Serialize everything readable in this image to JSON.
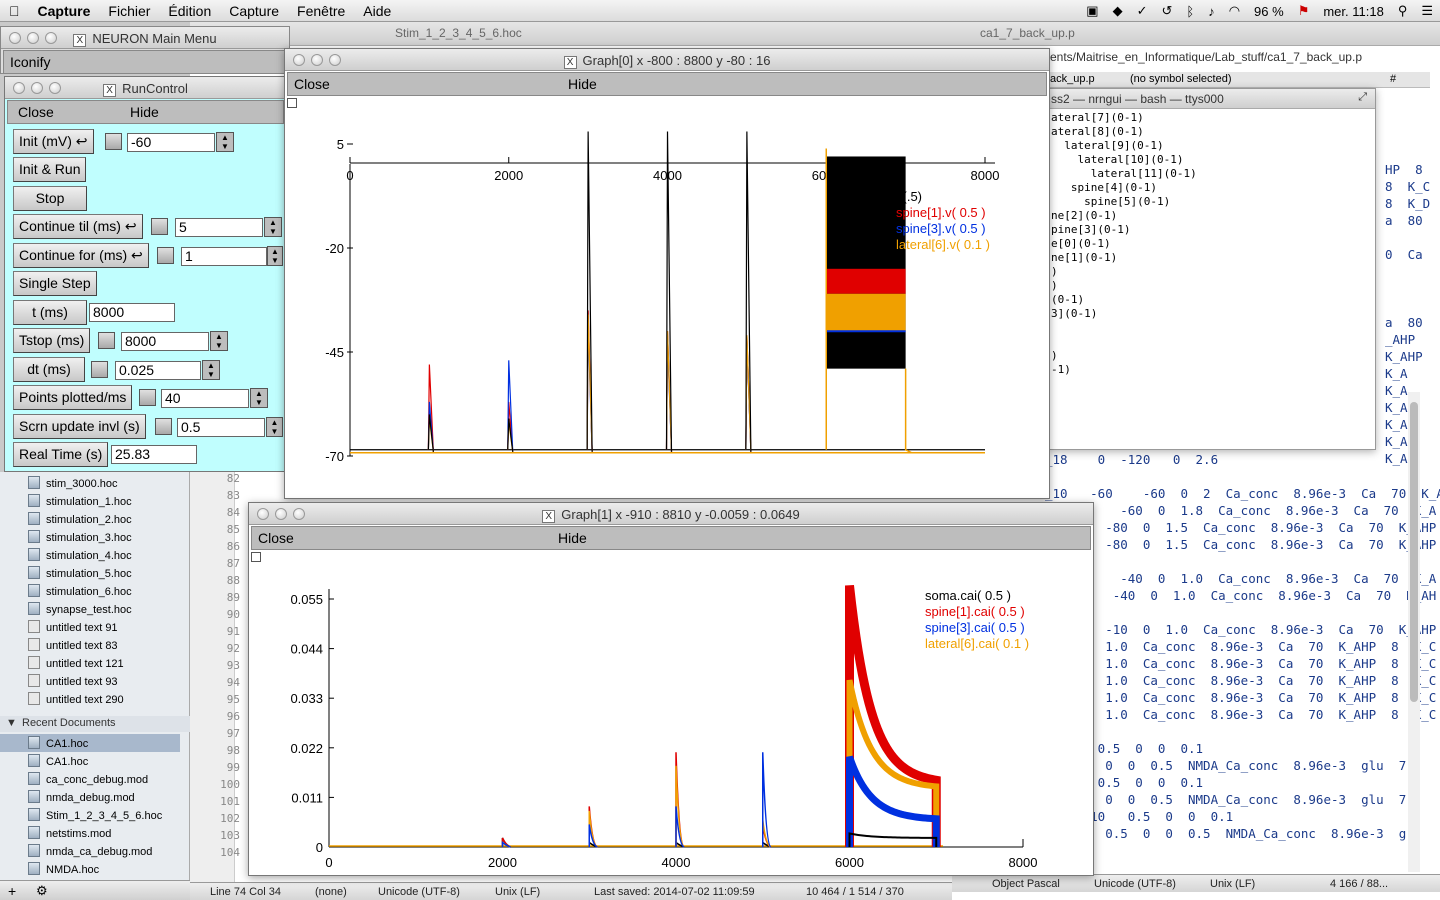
{
  "menubar": {
    "app": "Capture",
    "items": [
      "Fichier",
      "Édition",
      "Capture",
      "Fenêtre",
      "Aide"
    ],
    "battery": "96 %",
    "clock": "mer. 11:18"
  },
  "neuron_main": {
    "title": "NEURON Main Menu",
    "iconify": "Iconify"
  },
  "run_control": {
    "title": "RunControl",
    "close": "Close",
    "hide": "Hide",
    "init_label": "Init (mV)",
    "init_value": "-60",
    "init_run": "Init & Run",
    "stop": "Stop",
    "continue_til": "Continue til (ms)",
    "continue_til_value": "5",
    "continue_for": "Continue for (ms)",
    "continue_for_value": "1",
    "single_step": "Single Step",
    "t_label": "t (ms)",
    "t_value": "8000",
    "tstop_label": "Tstop (ms)",
    "tstop_value": "8000",
    "dt_label": "dt (ms)",
    "dt_value": "0.025",
    "points_label": "Points plotted/ms",
    "points_value": "40",
    "scrn_label": "Scrn update invl (s)",
    "scrn_value": "0.5",
    "realtime_label": "Real Time (s)",
    "realtime_value": "25.83"
  },
  "editor_tabs": {
    "tab1": "Stim_1_2_3_4_5_6.hoc",
    "tab2": "ca1_7_back_up.p",
    "path": "ents/Maitrise_en_Informatique/Lab_stuff/ca1_7_back_up.p",
    "symbol_file": "ack_up.p",
    "symbol": "(no symbol selected)",
    "hash": "#"
  },
  "terminal": {
    "title": "ss2 — nrngui — bash — ttys000",
    "lines": [
      "ateral[7](0-1)",
      "ateral[8](0-1)",
      "  lateral[9](0-1)",
      "    lateral[10](0-1)",
      "      lateral[11](0-1)",
      "   spine[4](0-1)",
      "     spine[5](0-1)",
      "ne[2](0-1)",
      "pine[3](0-1)",
      "e[0](0-1)",
      "ne[1](0-1)",
      ")",
      ")",
      "(0-1)",
      "3](0-1)",
      "",
      "",
      ")",
      "-1)"
    ]
  },
  "right_code": {
    "lines": [
      "HP  8",
      "8  K_C",
      "8  K_D",
      "a  80",
      "",
      "0  Ca",
      "",
      "",
      "",
      "a  80",
      "_AHP",
      "K_AHP",
      "K_A",
      "K_A",
      "K_A",
      "K_A",
      "K_A",
      "K_A"
    ]
  },
  "code_lines": [
    {
      "n": "82",
      "t": "_18    0  -120   0  2.6"
    },
    {
      "n": "83",
      "t": ""
    },
    {
      "n": "84",
      "t": "_10   -60    -60  0  2  Ca_conc  8.96e-3  Ca  70  K_AHP"
    },
    {
      "n": "85",
      "t": "   -60    -60  0  1.8  Ca_conc  8.96e-3  Ca  70  K_A"
    },
    {
      "n": "86",
      "t": "   0    -80  0  1.5  Ca_conc  8.96e-3  Ca  70  K_AHP"
    },
    {
      "n": "87",
      "t": "   0    -80  0  1.5  Ca_conc  8.96e-3  Ca  70  K_AHP"
    },
    {
      "n": "88",
      "t": ""
    },
    {
      "n": "89",
      "t": "    40    -40  0  1.0  Ca_conc  8.96e-3  Ca  70  K_A"
    },
    {
      "n": "90",
      "t": "   40    -40  0  1.0  Ca_conc  8.96e-3  Ca  70  K_AH"
    },
    {
      "n": "91",
      "t": ""
    },
    {
      "n": "92",
      "t": "   0    -10  0  1.0  Ca_conc  8.96e-3  Ca  70  K_AHP"
    },
    {
      "n": "93",
      "t": "  0  0  1.0  Ca_conc  8.96e-3  Ca  70  K_AHP  8  K_C"
    },
    {
      "n": "94",
      "t": "  0  0  1.0  Ca_conc  8.96e-3  Ca  70  K_AHP  8  K_C"
    },
    {
      "n": "95",
      "t": "  0  0  1.0  Ca_conc  8.96e-3  Ca  70  K_AHP  8  K_C"
    },
    {
      "n": "96",
      "t": "  0  0  1.0  Ca_conc  8.96e-3  Ca  70  K_AHP  8  K_C"
    },
    {
      "n": "97",
      "t": "  0  0  1.0  Ca_conc  8.96e-3  Ca  70  K_AHP  8  K_C"
    },
    {
      "n": "98",
      "t": ""
    },
    {
      "n": "99",
      "t": "4_1    0.5  0  0  0.1"
    },
    {
      "n": "100",
      "t": "   0.5  0  0  0.5  NMDA_Ca_conc  8.96e-3  glu  7"
    },
    {
      "n": "101",
      "t": "4_2    0.5  0  0  0.1"
    },
    {
      "n": "102",
      "t": "   0.5  0  0  0.5  NMDA_Ca_conc  8.96e-3  glu  7"
    },
    {
      "n": "103",
      "t": "at_14_10   0.5  0  0  0.1"
    },
    {
      "n": "104",
      "t": "        0.5  0  0  0.5  NMDA_Ca_conc  8.96e-3  g"
    }
  ],
  "sidebar": {
    "files": [
      "stim_3000.hoc",
      "stimulation_1.hoc",
      "stimulation_2.hoc",
      "stimulation_3.hoc",
      "stimulation_4.hoc",
      "stimulation_5.hoc",
      "stimulation_6.hoc",
      "synapse_test.hoc",
      "untitled text 91",
      "untitled text 83",
      "untitled text 121",
      "untitled text 93",
      "untitled text 290"
    ],
    "recent_header": "Recent Documents",
    "recent": [
      "CA1.hoc",
      "CA1.hoc",
      "ca_conc_debug.mod",
      "nmda_debug.mod",
      "Stim_1_2_3_4_5_6.hoc",
      "netstims.mod",
      "nmda_ca_debug.mod",
      "NMDA.hoc"
    ]
  },
  "statusbar": {
    "position": "Line 74 Col 34",
    "symbol": "(none)",
    "encoding": "Unicode (UTF-8)",
    "lineend": "Unix (LF)",
    "saved": "Last saved: 2014-07-02 11:09:59",
    "stats": "10 464 / 1 514 / 370"
  },
  "statusbar_right": {
    "lang": "Object Pascal",
    "encoding": "Unicode (UTF-8)",
    "lineend": "Unix (LF)",
    "stats": "4 166 / 88..."
  },
  "graph0": {
    "title": "Graph[0]  x -800 : 8800  y -80 : 16",
    "close": "Close",
    "hide": "Hide"
  },
  "graph1": {
    "title": "Graph[1]  x -910 : 8810  y -0.0059 : 0.0649",
    "close": "Close",
    "hide": "Hide"
  },
  "chart_data": [
    {
      "type": "line",
      "xlim": [
        0,
        8000
      ],
      "ylim": [
        -70,
        5
      ],
      "x_ticks": [
        "0",
        "2000",
        "4000",
        "6000",
        "8000"
      ],
      "y_ticks": [
        "5",
        "-20",
        "-45",
        "-70"
      ],
      "legend": [
        {
          "name": "v(.5)",
          "color": "#000000"
        },
        {
          "name": "spine[1].v( 0.5 )",
          "color": "#e00000"
        },
        {
          "name": "spine[3].v( 0.5 )",
          "color": "#0030e0"
        },
        {
          "name": "lateral[6].v( 0.1 )",
          "color": "#f0a000"
        }
      ],
      "baseline": -68.5,
      "spikes": [
        {
          "x": 1000,
          "black": -60,
          "red": -48,
          "blue": -57,
          "orange": -61
        },
        {
          "x": 2000,
          "black": -61,
          "red": -57,
          "blue": -47,
          "orange": -62
        },
        {
          "x": 3000,
          "black": 8,
          "red": -35,
          "blue": -39,
          "orange": -36
        },
        {
          "x": 4000,
          "black": 8,
          "red": -40,
          "blue": -42,
          "orange": -40
        },
        {
          "x": 5000,
          "black": 8,
          "red": -41,
          "blue": -42,
          "orange": -41
        }
      ],
      "burst": {
        "x0": 6000,
        "x1": 7000,
        "top": 2,
        "bottom": -49,
        "red_top": -25,
        "red_bottom": -31,
        "orange_top": -31,
        "orange_bottom": -40,
        "blue": -40
      }
    },
    {
      "type": "line",
      "xlim": [
        0,
        8000
      ],
      "ylim": [
        0,
        0.055
      ],
      "x_ticks": [
        "0",
        "2000",
        "4000",
        "6000",
        "8000"
      ],
      "y_ticks": [
        "0.055",
        "0.044",
        "0.033",
        "0.022",
        "0.011",
        "0"
      ],
      "legend": [
        {
          "name": "soma.cai( 0.5 )",
          "color": "#000000"
        },
        {
          "name": "spine[1].cai( 0.5 )",
          "color": "#e00000"
        },
        {
          "name": "spine[3].cai( 0.5 )",
          "color": "#0030e0"
        },
        {
          "name": "lateral[6].cai( 0.1 )",
          "color": "#f0a000"
        }
      ],
      "spikes": [
        {
          "x": 2000,
          "red": 0.002,
          "blue": 0.001,
          "orange": 0.001,
          "black": 0.002
        },
        {
          "x": 3000,
          "red": 0.009,
          "blue": 0.005,
          "orange": 0.008,
          "black": 0.001
        },
        {
          "x": 4000,
          "red": 0.021,
          "blue": 0.009,
          "orange": 0.018,
          "black": 0.001
        },
        {
          "x": 5000,
          "red": 0.005,
          "blue": 0.021,
          "orange": 0.006,
          "black": 0.001
        }
      ],
      "burst": {
        "x0": 6000,
        "x1": 7000,
        "red_peak": 0.058,
        "red_end": 0.014,
        "orange_peak": 0.037,
        "orange_end": 0.013,
        "blue_peak": 0.02,
        "blue_end": 0.006,
        "black_peak": 0.003,
        "black_end": 0.002
      }
    }
  ]
}
